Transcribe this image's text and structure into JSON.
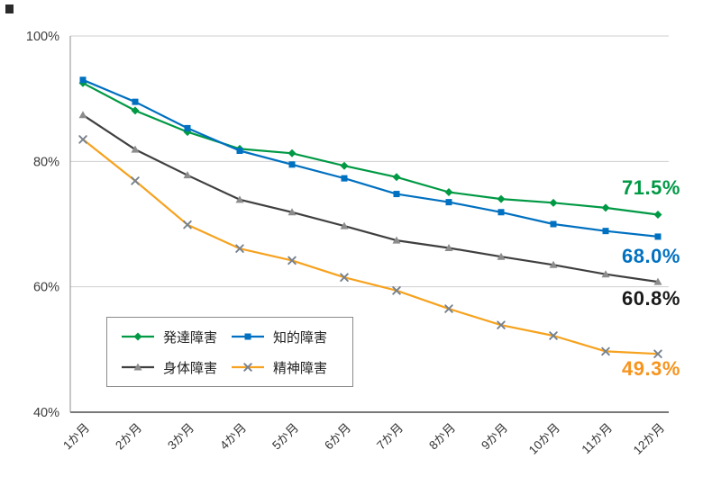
{
  "chart_data": {
    "type": "line",
    "categories": [
      "1か月",
      "2か月",
      "3か月",
      "4か月",
      "5か月",
      "6か月",
      "7か月",
      "8か月",
      "9か月",
      "10か月",
      "11か月",
      "12か月"
    ],
    "series": [
      {
        "name": "発達障害",
        "color": "#009944",
        "marker": "diamond",
        "marker_color": "#009944",
        "label_color": "#009944",
        "end_label": "71.5%",
        "values": [
          92.5,
          88.1,
          84.7,
          82.0,
          81.3,
          79.3,
          77.5,
          75.1,
          74.0,
          73.4,
          72.6,
          71.5
        ]
      },
      {
        "name": "知的障害",
        "color": "#0070C0",
        "marker": "square",
        "marker_color": "#0070C0",
        "label_color": "#0070C0",
        "end_label": "68.0%",
        "values": [
          93.0,
          89.5,
          85.3,
          81.7,
          79.5,
          77.3,
          74.8,
          73.5,
          71.9,
          70.0,
          68.9,
          68.0
        ]
      },
      {
        "name": "身体障害",
        "color": "#3F3F3F",
        "marker": "triangle",
        "marker_color": "#8C8C8C",
        "label_color": "#1A1A1A",
        "end_label": "60.8%",
        "values": [
          87.4,
          81.9,
          77.8,
          73.9,
          71.9,
          69.7,
          67.4,
          66.2,
          64.8,
          63.5,
          62.0,
          60.8
        ]
      },
      {
        "name": "精神障害",
        "color": "#F6A21E",
        "marker": "x",
        "marker_color": "#76818E",
        "label_color": "#F6941E",
        "end_label": "49.3%",
        "values": [
          83.5,
          76.9,
          69.9,
          66.1,
          64.2,
          61.5,
          59.4,
          56.5,
          53.9,
          52.2,
          49.7,
          49.3
        ]
      }
    ],
    "ylim": [
      40,
      100
    ],
    "ytick_values": [
      40,
      60,
      80,
      100
    ],
    "ytick_labels": [
      "40%",
      "60%",
      "80%",
      "100%"
    ],
    "grid": true,
    "grid_color": "#CFCFCF",
    "axis_color": "#4D4D4D",
    "legend_position": "inside-bottom-left"
  }
}
